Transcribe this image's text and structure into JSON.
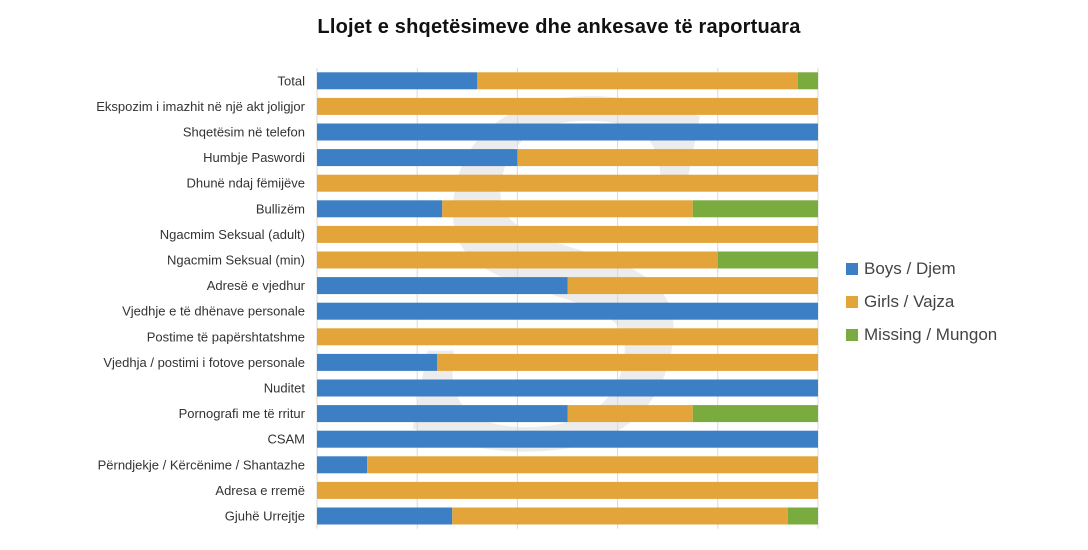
{
  "title": "Llojet e shqetësimeve dhe ankesave të raportuara",
  "colors": {
    "boys": "#3d7fc4",
    "girls": "#e3a43a",
    "missing": "#7aab3f",
    "grid": "#d9d9d9",
    "watermark": "#9a9a9a"
  },
  "legend": [
    {
      "name": "Boys / Djem",
      "color": "#3d7fc4"
    },
    {
      "name": "Girls / Vajza",
      "color": "#e3a43a"
    },
    {
      "name": "Missing / Mungon",
      "color": "#7aab3f"
    }
  ],
  "chart_data": {
    "type": "bar",
    "orientation": "horizontal",
    "stacking": "percent",
    "title": "Llojet e shqetësimeve dhe ankesave të raportuara",
    "categories": [
      "Total",
      "Ekspozim i imazhit në një akt joligjor",
      "Shqetësim në telefon",
      "Humbje Paswordi",
      "Dhunë ndaj fëmijëve",
      "Bullizëm",
      "Ngacmim Seksual (adult)",
      "Ngacmim Seksual (min)",
      "Adresë e vjedhur",
      "Vjedhje e të dhënave personale",
      "Postime të papërshtatshme",
      "Vjedhja / postimi i fotove personale",
      "Nuditet",
      "Pornografi me të rritur",
      "CSAM",
      "Përndjekje / Kërcënime / Shantazhe",
      "Adresa e rremë",
      "Gjuhë Urrejtje"
    ],
    "series": [
      {
        "name": "Boys / Djem",
        "values": [
          32,
          0,
          100,
          40,
          0,
          25,
          0,
          0,
          50,
          100,
          0,
          24,
          100,
          50,
          100,
          10,
          0,
          27
        ]
      },
      {
        "name": "Girls / Vajza",
        "values": [
          64,
          100,
          0,
          60,
          100,
          50,
          100,
          80,
          50,
          0,
          100,
          76,
          0,
          25,
          0,
          90,
          100,
          67
        ]
      },
      {
        "name": "Missing / Mungon",
        "values": [
          4,
          0,
          0,
          0,
          0,
          25,
          0,
          20,
          0,
          0,
          0,
          0,
          0,
          25,
          0,
          0,
          0,
          6
        ]
      }
    ],
    "xlim": [
      0,
      100
    ],
    "grid": true,
    "legend_position": "right"
  }
}
